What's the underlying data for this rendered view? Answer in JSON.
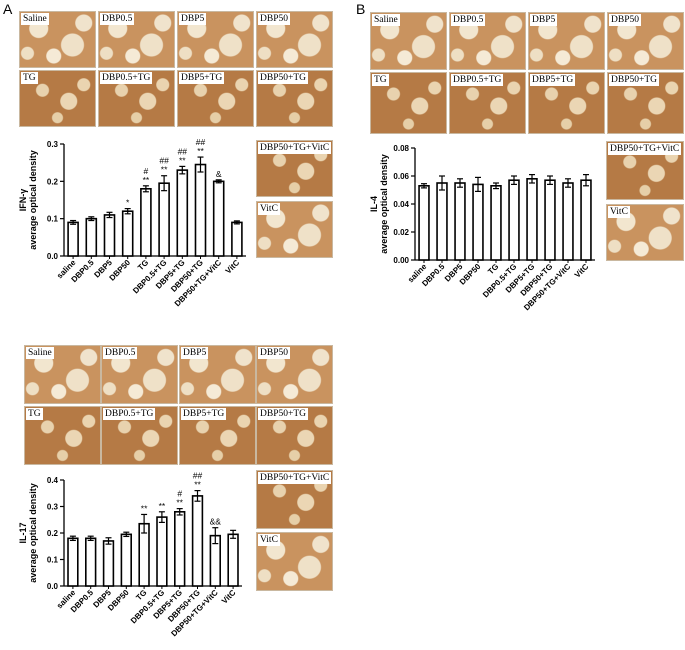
{
  "panels": {
    "A": "A",
    "B": "B"
  },
  "image_labels": {
    "ifn": [
      "Saline",
      "DBP0.5",
      "DBP5",
      "DBP50",
      "TG",
      "DBP0.5+TG",
      "DBP5+TG",
      "DBP50+TG",
      "DBP50+TG+VitC",
      "VitC"
    ],
    "il4": [
      "Saline",
      "DBP0.5",
      "DBP5",
      "DBP50",
      "TG",
      "DBP0.5+TG",
      "DBP5+TG",
      "DBP50+TG",
      "DBP50+TG+VitC",
      "VitC"
    ],
    "il17": [
      "Saline",
      "DBP0.5",
      "DBP5",
      "DBP50",
      "TG",
      "DBP0.5+TG",
      "DBP5+TG",
      "DBP50+TG",
      "DBP50+TG+VitC",
      "VitC"
    ]
  },
  "chart_data": [
    {
      "type": "bar",
      "ylabel": "IFN-γ",
      "ylabel2": "average optical density",
      "categories": [
        "saline",
        "DBP0.5",
        "DBP5",
        "DBP50",
        "TG",
        "DBP0.5+TG",
        "DBP5+TG",
        "DBP50+TG",
        "DBP50+TG+VitC",
        "VitC"
      ],
      "values": [
        0.09,
        0.1,
        0.11,
        0.12,
        0.18,
        0.195,
        0.23,
        0.245,
        0.2,
        0.09
      ],
      "errors": [
        0.005,
        0.005,
        0.007,
        0.007,
        0.008,
        0.02,
        0.01,
        0.02,
        0.004,
        0.004
      ],
      "annotations": [
        [
          "",
          ""
        ],
        [
          "",
          ""
        ],
        [
          "",
          ""
        ],
        [
          "*",
          ""
        ],
        [
          "**",
          "#"
        ],
        [
          "**",
          "##"
        ],
        [
          "**",
          "##"
        ],
        [
          "**",
          "##"
        ],
        [
          "&",
          ""
        ],
        [
          "",
          ""
        ]
      ],
      "ylim": [
        0,
        0.3
      ],
      "yticks": [
        "0.0",
        "0.1",
        "0.2",
        "0.3"
      ]
    },
    {
      "type": "bar",
      "ylabel": "IL-4",
      "ylabel2": "average optical density",
      "categories": [
        "saline",
        "DBP0.5",
        "DBP5",
        "DBP50",
        "TG",
        "DBP0.5+TG",
        "DBP5+TG",
        "DBP50+TG",
        "DBP50+TG+VitC",
        "VitC"
      ],
      "values": [
        0.053,
        0.055,
        0.055,
        0.054,
        0.053,
        0.057,
        0.058,
        0.057,
        0.055,
        0.057
      ],
      "errors": [
        0.0015,
        0.005,
        0.003,
        0.005,
        0.002,
        0.003,
        0.003,
        0.003,
        0.003,
        0.004
      ],
      "annotations": [
        [
          "",
          ""
        ],
        [
          "",
          ""
        ],
        [
          "",
          ""
        ],
        [
          "",
          ""
        ],
        [
          "",
          ""
        ],
        [
          "",
          ""
        ],
        [
          "",
          ""
        ],
        [
          "",
          ""
        ],
        [
          "",
          ""
        ],
        [
          "",
          ""
        ]
      ],
      "ylim": [
        0,
        0.08
      ],
      "yticks": [
        "0.00",
        "0.02",
        "0.04",
        "0.06",
        "0.08"
      ]
    },
    {
      "type": "bar",
      "ylabel": "IL-17",
      "ylabel2": "average optical density",
      "categories": [
        "saline",
        "DBP0.5",
        "DBP5",
        "DBP50",
        "TG",
        "DBP0.5+TG",
        "DBP5+TG",
        "DBP50+TG",
        "DBP50+TG+VitC",
        "VitC"
      ],
      "values": [
        0.18,
        0.18,
        0.17,
        0.195,
        0.235,
        0.26,
        0.28,
        0.34,
        0.19,
        0.195
      ],
      "errors": [
        0.008,
        0.008,
        0.012,
        0.008,
        0.035,
        0.02,
        0.012,
        0.02,
        0.03,
        0.015
      ],
      "annotations": [
        [
          "",
          ""
        ],
        [
          "",
          ""
        ],
        [
          "",
          ""
        ],
        [
          "",
          ""
        ],
        [
          "**",
          ""
        ],
        [
          "**",
          ""
        ],
        [
          "**",
          "#"
        ],
        [
          "**",
          "##"
        ],
        [
          "&&",
          ""
        ],
        [
          "",
          ""
        ]
      ],
      "ylim": [
        0,
        0.4
      ],
      "yticks": [
        "0.0",
        "0.1",
        "0.2",
        "0.3",
        "0.4"
      ]
    }
  ]
}
